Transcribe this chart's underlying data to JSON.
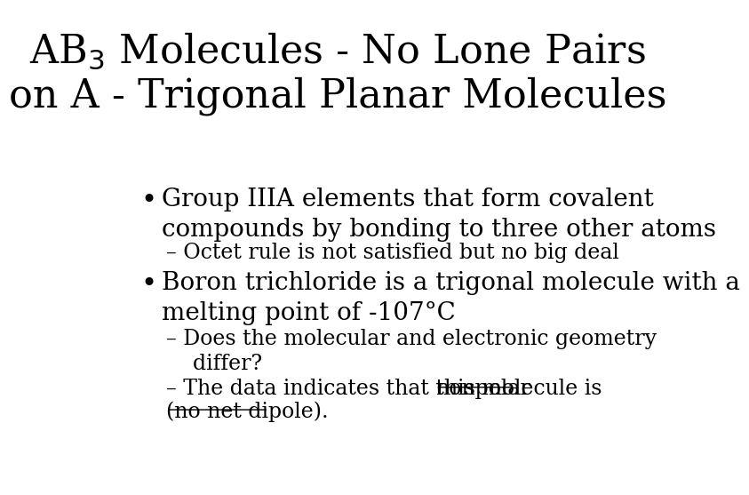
{
  "bg_color": "#ffffff",
  "title_line1": "AB$_3$ Molecules - No Lone Pairs",
  "title_line2": "on A - Trigonal Planar Molecules",
  "title_fontsize": 32,
  "title_color": "#000000",
  "bullet1_text1": "Group IIIA elements that form covalent",
  "bullet1_text2": "compounds by bonding to three other atoms",
  "sub1_text": "– Octet rule is not satisfied but no big deal",
  "bullet2_text1": "Boron trichloride is a trigonal molecule with a",
  "bullet2_text2": "melting point of -107°C",
  "sub2_text1": "– Does the molecular and electronic geometry",
  "sub2_text2": "    differ?",
  "sub3_prefix": "– The data indicates that this molecule is ",
  "sub3_underline": "nonpolar",
  "sub4_underline": "(no net dipole).",
  "bullet_fontsize": 20,
  "sub_fontsize": 17,
  "text_color": "#000000"
}
